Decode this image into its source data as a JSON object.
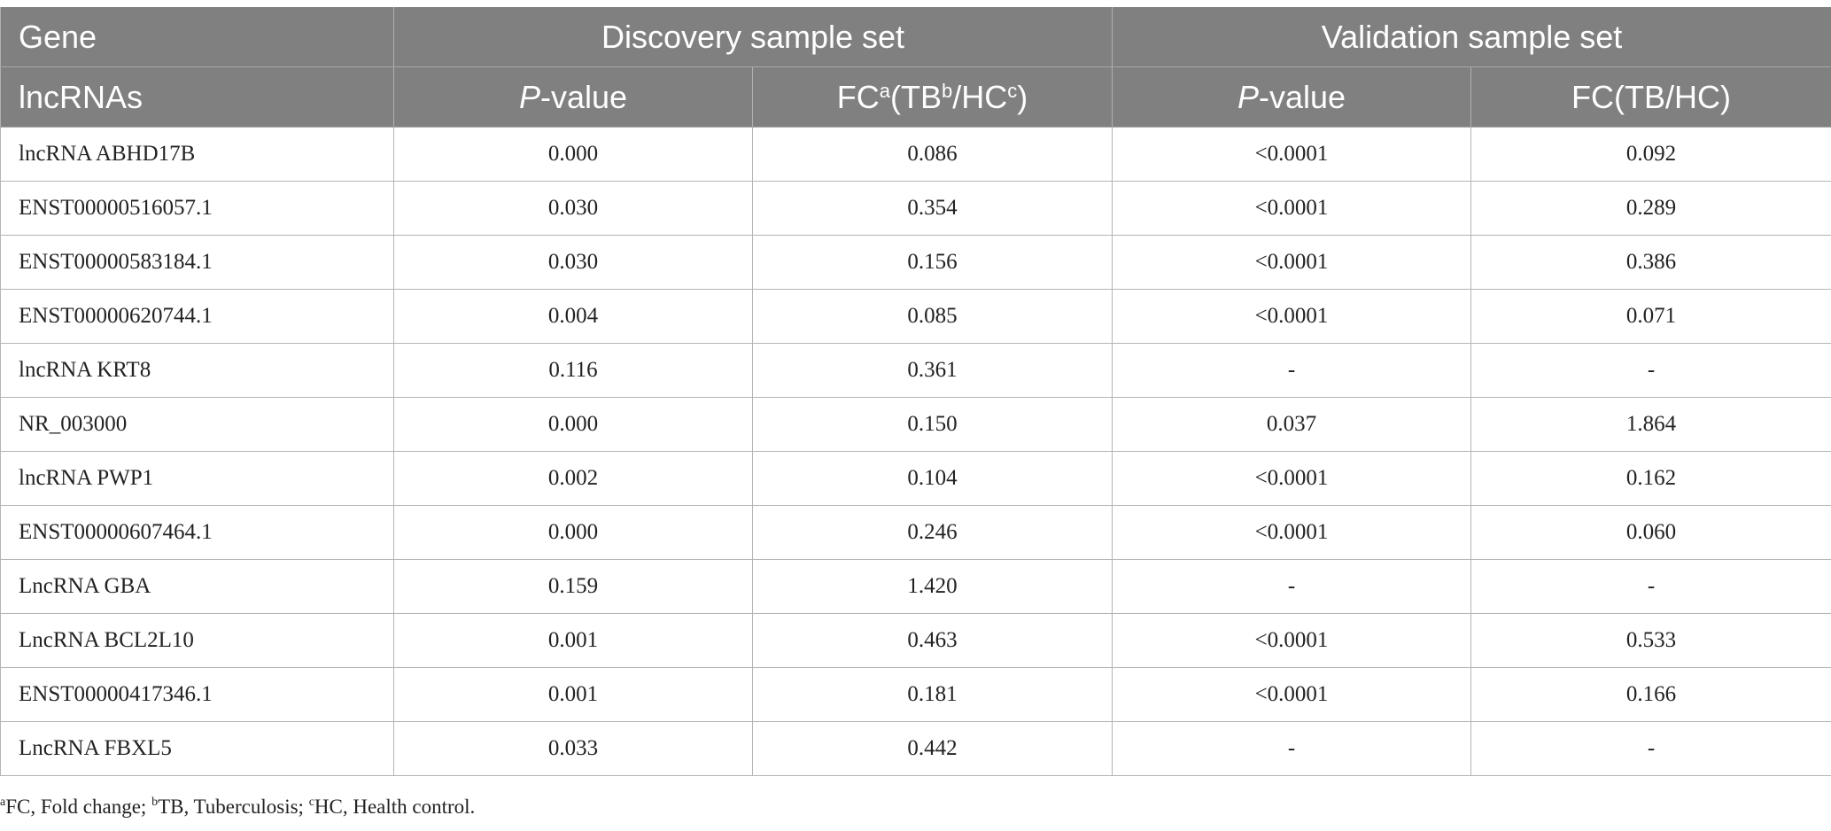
{
  "header": {
    "row1": {
      "gene": "Gene",
      "discovery": "Discovery sample set",
      "validation": "Validation sample set"
    },
    "row2": {
      "lncrnas": "lncRNAs",
      "p_prefix": "P",
      "p_suffix": "-value",
      "fc_a_prefix": "FC",
      "fc_a_sup_a": "a",
      "fc_a_mid": "(TB",
      "fc_a_sup_b": "b",
      "fc_a_slash": "/HC",
      "fc_a_sup_c": "c",
      "fc_a_end": ")",
      "fc_b": "FC(TB/HC)"
    }
  },
  "rows": [
    {
      "gene": "lncRNA ABHD17B",
      "disc_p": "0.000",
      "disc_fc": "0.086",
      "val_p": "<0.0001",
      "val_fc": "0.092"
    },
    {
      "gene": "ENST00000516057.1",
      "disc_p": "0.030",
      "disc_fc": "0.354",
      "val_p": "<0.0001",
      "val_fc": "0.289"
    },
    {
      "gene": "ENST00000583184.1",
      "disc_p": "0.030",
      "disc_fc": "0.156",
      "val_p": "<0.0001",
      "val_fc": "0.386"
    },
    {
      "gene": "ENST00000620744.1",
      "disc_p": "0.004",
      "disc_fc": "0.085",
      "val_p": "<0.0001",
      "val_fc": "0.071"
    },
    {
      "gene": "lncRNA KRT8",
      "disc_p": "0.116",
      "disc_fc": "0.361",
      "val_p": "-",
      "val_fc": "-"
    },
    {
      "gene": "NR_003000",
      "disc_p": "0.000",
      "disc_fc": "0.150",
      "val_p": "0.037",
      "val_fc": "1.864"
    },
    {
      "gene": "lncRNA PWP1",
      "disc_p": "0.002",
      "disc_fc": "0.104",
      "val_p": "<0.0001",
      "val_fc": "0.162"
    },
    {
      "gene": "ENST00000607464.1",
      "disc_p": "0.000",
      "disc_fc": "0.246",
      "val_p": "<0.0001",
      "val_fc": "0.060"
    },
    {
      "gene": "LncRNA GBA",
      "disc_p": "0.159",
      "disc_fc": "1.420",
      "val_p": "-",
      "val_fc": "-"
    },
    {
      "gene": "LncRNA BCL2L10",
      "disc_p": "0.001",
      "disc_fc": "0.463",
      "val_p": "<0.0001",
      "val_fc": "0.533"
    },
    {
      "gene": "ENST00000417346.1",
      "disc_p": "0.001",
      "disc_fc": "0.181",
      "val_p": "<0.0001",
      "val_fc": "0.166"
    },
    {
      "gene": "LncRNA FBXL5",
      "disc_p": "0.033",
      "disc_fc": "0.442",
      "val_p": "-",
      "val_fc": "-"
    }
  ],
  "footnote": {
    "sup_a": "a",
    "text_a": "FC, Fold change; ",
    "sup_b": "b",
    "text_b": "TB, Tuberculosis; ",
    "sup_c": "c",
    "text_c": "HC, Health control."
  }
}
